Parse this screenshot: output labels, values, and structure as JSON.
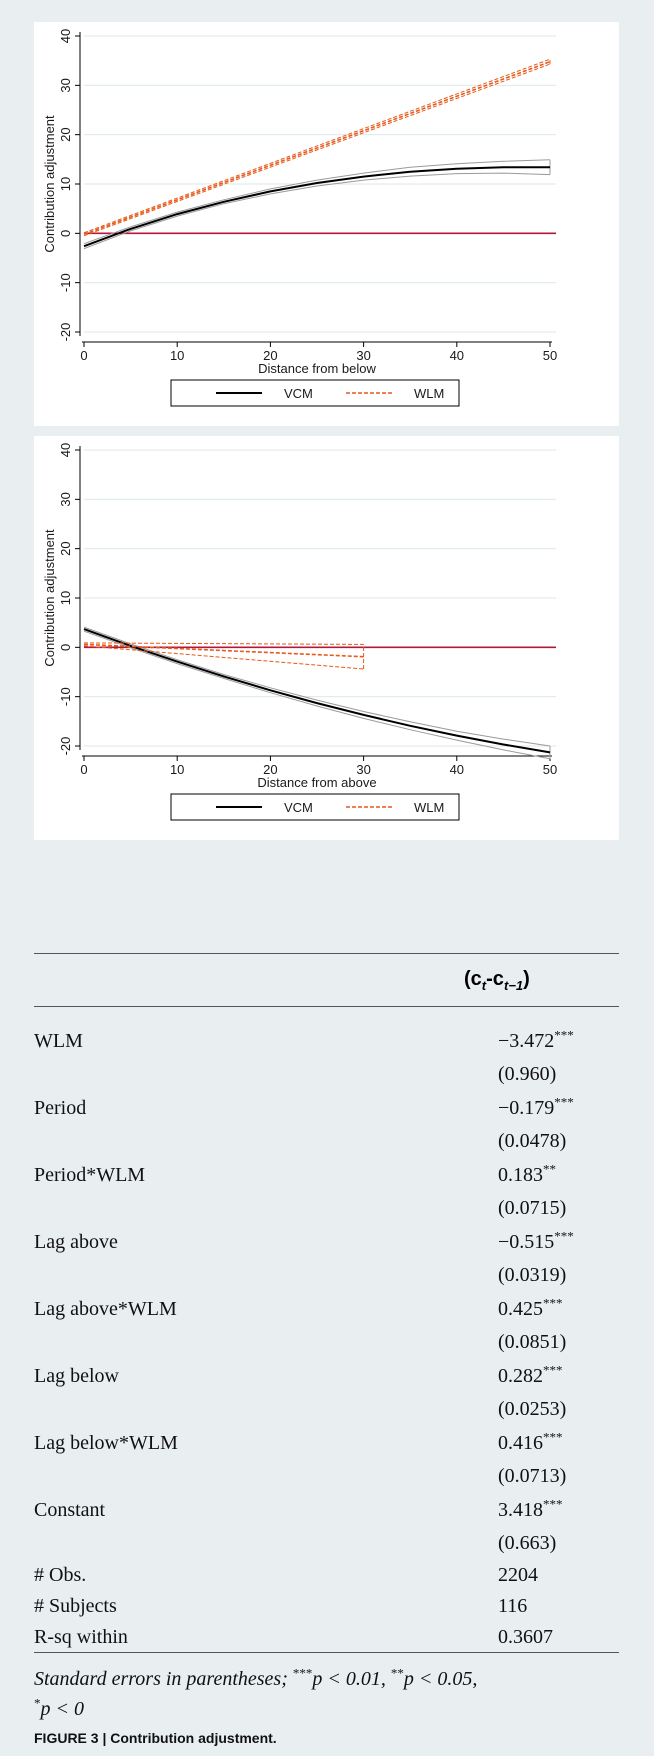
{
  "chart_data": [
    {
      "type": "line",
      "ylabel": "Contribution adjustment",
      "xlabel": "Distance from below",
      "xlim": [
        0,
        50
      ],
      "ylim": [
        -20,
        40
      ],
      "xticks": [
        "0",
        "10",
        "20",
        "30",
        "40",
        "50"
      ],
      "yticks": [
        "-20",
        "-10",
        "0",
        "10",
        "20",
        "30",
        "40"
      ],
      "reference_line_y": 0,
      "legend": [
        "VCM",
        "WLM"
      ],
      "legend_position": "bottom",
      "series": [
        {
          "name": "VCM",
          "color": "#000000",
          "style": "solid",
          "x": [
            0,
            5,
            10,
            15,
            20,
            25,
            30,
            35,
            40,
            45,
            50
          ],
          "y": [
            -2.6,
            0.9,
            3.9,
            6.4,
            8.5,
            10.2,
            11.5,
            12.5,
            13.1,
            13.4,
            13.4
          ],
          "ci_low": [
            -3.1,
            0.5,
            3.5,
            6.0,
            8.0,
            9.6,
            10.8,
            11.6,
            12.1,
            12.2,
            11.9
          ],
          "ci_high": [
            -2.1,
            1.3,
            4.3,
            6.8,
            9.0,
            10.8,
            12.2,
            13.4,
            14.1,
            14.6,
            14.9
          ]
        },
        {
          "name": "WLM",
          "color": "#e8591a",
          "style": "dashed",
          "x": [
            0,
            50
          ],
          "y": [
            -0.2,
            34.8
          ],
          "ci_low": [
            -0.5,
            34.3
          ],
          "ci_high": [
            0.1,
            35.3
          ]
        }
      ]
    },
    {
      "type": "line",
      "ylabel": "Contribution adjustment",
      "xlabel": "Distance from above",
      "xlim": [
        0,
        50
      ],
      "ylim": [
        -20,
        40
      ],
      "xticks": [
        "0",
        "10",
        "20",
        "30",
        "40",
        "50"
      ],
      "yticks": [
        "-20",
        "-10",
        "0",
        "10",
        "20",
        "30",
        "40"
      ],
      "reference_line_y": 0,
      "legend": [
        "VCM",
        "WLM"
      ],
      "legend_position": "bottom",
      "series": [
        {
          "name": "VCM",
          "color": "#000000",
          "style": "solid",
          "x": [
            0,
            5,
            10,
            15,
            20,
            25,
            30,
            35,
            40,
            45,
            50
          ],
          "y": [
            3.7,
            0.3,
            -2.9,
            -5.9,
            -8.7,
            -11.3,
            -13.7,
            -15.9,
            -17.9,
            -19.7,
            -21.3
          ],
          "ci_low": [
            3.3,
            -0.1,
            -3.3,
            -6.3,
            -9.2,
            -11.9,
            -14.4,
            -16.7,
            -18.8,
            -20.8,
            -22.6
          ],
          "ci_high": [
            4.1,
            0.7,
            -2.5,
            -5.5,
            -8.2,
            -10.7,
            -13.0,
            -15.1,
            -17.0,
            -18.6,
            -20.0
          ]
        },
        {
          "name": "WLM",
          "color": "#e8591a",
          "style": "dashed",
          "x": [
            0,
            30
          ],
          "y": [
            0.6,
            -1.9
          ],
          "ci_low": [
            0.3,
            -4.4
          ],
          "ci_high": [
            0.9,
            0.6
          ]
        }
      ]
    }
  ],
  "table": {
    "header": "(c_t-c_t−1)",
    "rows": [
      {
        "label": "WLM",
        "coef": "−3.472",
        "stars": "***",
        "se": "(0.960)"
      },
      {
        "label": "Period",
        "coef": "−0.179",
        "stars": "***",
        "se": "(0.0478)"
      },
      {
        "label": "Period*WLM",
        "coef": "0.183",
        "stars": "**",
        "se": "(0.0715)"
      },
      {
        "label": "Lag above",
        "coef": "−0.515",
        "stars": "***",
        "se": "(0.0319)"
      },
      {
        "label": "Lag above*WLM",
        "coef": "0.425",
        "stars": "***",
        "se": "(0.0851)"
      },
      {
        "label": "Lag below",
        "coef": "0.282",
        "stars": "***",
        "se": "(0.0253)"
      },
      {
        "label": "Lag below*WLM",
        "coef": "0.416",
        "stars": "***",
        "se": "(0.0713)"
      },
      {
        "label": "Constant",
        "coef": "3.418",
        "stars": "***",
        "se": "(0.663)"
      }
    ],
    "stats": [
      {
        "label": "# Obs.",
        "value": "2204"
      },
      {
        "label": "# Subjects",
        "value": "116"
      },
      {
        "label": "R-sq within",
        "value": "0.3607"
      }
    ],
    "note_line1": "Standard errors in parentheses;",
    "note_p1": "p  <  0.01,",
    "note_p2": "p  <  0.05,",
    "note_p3": "p < 0"
  },
  "caption": "FIGURE 3 | Contribution adjustment."
}
